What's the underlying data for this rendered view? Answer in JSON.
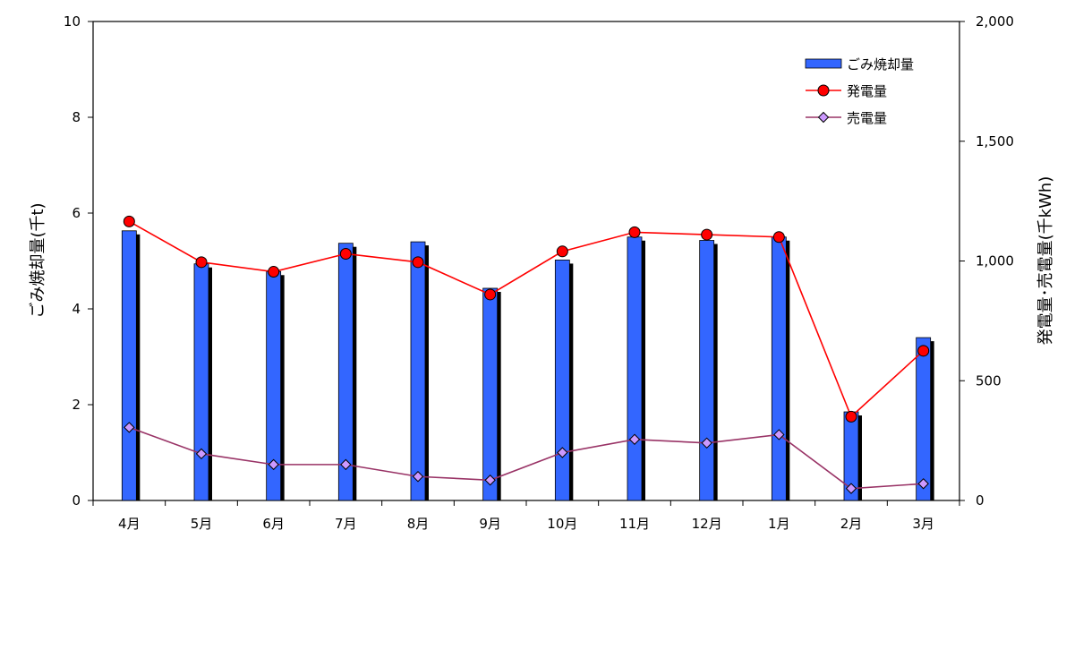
{
  "chart_data": {
    "type": "bar",
    "categories": [
      "4月",
      "5月",
      "6月",
      "7月",
      "8月",
      "9月",
      "10月",
      "11月",
      "12月",
      "1月",
      "2月",
      "3月"
    ],
    "series": [
      {
        "name": "ごみ焼却量",
        "type": "bar",
        "axis": "left",
        "color": "#3366ff",
        "values": [
          5.63,
          4.94,
          4.78,
          5.37,
          5.4,
          4.43,
          5.02,
          5.5,
          5.43,
          5.5,
          1.85,
          3.4
        ]
      },
      {
        "name": "発電量",
        "type": "line",
        "axis": "right",
        "color": "#ff0000",
        "marker": "circle",
        "values": [
          1165,
          995,
          955,
          1030,
          995,
          860,
          1040,
          1120,
          1110,
          1100,
          350,
          625
        ]
      },
      {
        "name": "売電量",
        "type": "line",
        "axis": "right",
        "color": "#993366",
        "marker": "diamond",
        "values": [
          305,
          195,
          150,
          150,
          100,
          85,
          200,
          255,
          240,
          275,
          50,
          70
        ]
      }
    ],
    "ylabel": "ごみ焼却量(千t)",
    "y2label": "発電量･売電量(千kWh)",
    "ylim": [
      0,
      10
    ],
    "y2lim": [
      0,
      2000
    ],
    "yticks": [
      "0",
      "2",
      "4",
      "6",
      "8",
      "10"
    ],
    "y2ticks": [
      "0",
      "500",
      "1,000",
      "1,500",
      "2,000"
    ],
    "grid": false,
    "legend_position": "top-right"
  }
}
